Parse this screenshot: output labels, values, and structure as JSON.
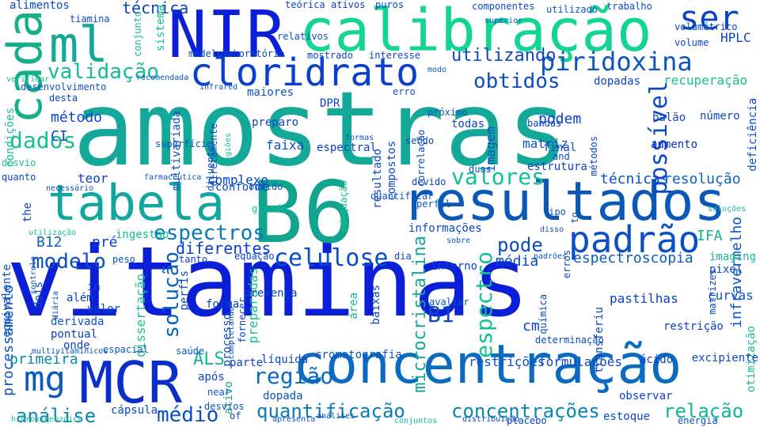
{
  "words": [
    {
      "text": "vitaminas",
      "color": "#0a1fd6"
    },
    {
      "text": "amostras",
      "color": "#13a898"
    },
    {
      "text": "B6",
      "color": "#11a48f"
    },
    {
      "text": "resultados",
      "color": "#0a59b7"
    },
    {
      "text": "concentração",
      "color": "#0a6bc1"
    },
    {
      "text": "calibração",
      "color": "#12d592"
    },
    {
      "text": "NIR",
      "color": "#0a1fd6"
    },
    {
      "text": "MCR",
      "color": "#0a2ec8"
    },
    {
      "text": "tabela",
      "color": "#11a6a0"
    },
    {
      "text": "cada",
      "color": "#15b08a"
    },
    {
      "text": "ml",
      "color": "#13a898"
    },
    {
      "text": "cloridrato",
      "color": "#0a3fcf"
    },
    {
      "text": "ser",
      "color": "#0a45bf"
    },
    {
      "text": "padrão",
      "color": "#0a4fc7"
    },
    {
      "text": "mg",
      "color": "#0a5ac0"
    },
    {
      "text": "piridoxina",
      "color": "#0a54c4"
    },
    {
      "text": "validação",
      "color": "#13bb98"
    },
    {
      "text": "utilizando",
      "color": "#0a47c9"
    },
    {
      "text": "obtidos",
      "color": "#0a4ec4"
    },
    {
      "text": "espectros",
      "color": "#0a78ba"
    },
    {
      "text": "dados",
      "color": "#17c18f"
    },
    {
      "text": "valores",
      "color": "#13c195"
    },
    {
      "text": "celulose",
      "color": "#0a4fc7"
    },
    {
      "text": "modelo",
      "color": "#0a51c4"
    },
    {
      "text": "região",
      "color": "#0a6bc1"
    },
    {
      "text": "quantificação",
      "color": "#0a7bb6"
    },
    {
      "text": "concentrações",
      "color": "#0a86b3"
    },
    {
      "text": "análise",
      "color": "#0a86b3"
    },
    {
      "text": "médio",
      "color": "#0a4fc7"
    },
    {
      "text": "relação",
      "color": "#13b39a"
    },
    {
      "text": "pode",
      "color": "#0a4ec4"
    },
    {
      "text": "solução",
      "color": "#0a63c1"
    },
    {
      "text": "espectro",
      "color": "#13c195"
    },
    {
      "text": "possível",
      "color": "#0a47c9"
    },
    {
      "text": "diferentes",
      "color": "#0a3fcf"
    },
    {
      "text": "espectroscopia",
      "color": "#0a5ac0"
    },
    {
      "text": "B1",
      "color": "#0a47c9"
    },
    {
      "text": "ALS",
      "color": "#13b39a"
    },
    {
      "text": "microcristalina",
      "color": "#13a898"
    },
    {
      "text": "método",
      "color": "#0a47c9"
    },
    {
      "text": "técnica",
      "color": "#0a45bf"
    },
    {
      "text": "CI",
      "color": "#0a47c9"
    },
    {
      "text": "B12",
      "color": "#0a63c1"
    },
    {
      "text": "pré",
      "color": "#0a3fcf"
    },
    {
      "text": "técnicas",
      "color": "#0a4fc7"
    },
    {
      "text": "resolução",
      "color": "#0a63c1"
    },
    {
      "text": "recuperação",
      "color": "#17c18f"
    },
    {
      "text": "infravermelho",
      "color": "#0a54c4"
    },
    {
      "text": "IFA",
      "color": "#15b08a"
    },
    {
      "text": "processamento",
      "color": "#0a54c4"
    },
    {
      "text": "primeira",
      "color": "#0a86b3"
    },
    {
      "text": "podem",
      "color": "#0a3fcf"
    },
    {
      "text": "matriz",
      "color": "#0a54c4"
    },
    {
      "text": "média",
      "color": "#0a47c9"
    },
    {
      "text": "imagem",
      "color": "#0a54c4"
    },
    {
      "text": "HPLC",
      "color": "#0a47c9"
    },
    {
      "text": "cm",
      "color": "#0a3fcf"
    },
    {
      "text": "dopadas",
      "color": "#0a47c9"
    },
    {
      "text": "preparadas",
      "color": "#17c18f"
    },
    {
      "text": "ingestão",
      "color": "#13bb98"
    },
    {
      "text": "complexo",
      "color": "#0a47c9"
    },
    {
      "text": "teor",
      "color": "#0a3fcf"
    },
    {
      "text": "estrutura",
      "color": "#0a3fcf"
    },
    {
      "text": "faixa",
      "color": "#0a54c4"
    },
    {
      "text": "espectral",
      "color": "#0a3fcf"
    },
    {
      "text": "todas",
      "color": "#0a47c9"
    },
    {
      "text": "próximo",
      "color": "#0a54c4"
    },
    {
      "text": "número",
      "color": "#0a47c9"
    },
    {
      "text": "balão",
      "color": "#0a47c9"
    },
    {
      "text": "aumento",
      "color": "#0a2ec8"
    },
    {
      "text": "pastilhas",
      "color": "#0a3fcf"
    },
    {
      "text": "curvas",
      "color": "#0a54c4"
    },
    {
      "text": "restrição",
      "color": "#0a3fcf"
    },
    {
      "text": "restrições",
      "color": "#0a54c4"
    },
    {
      "text": "formulações",
      "color": "#0a47c9"
    },
    {
      "text": "ácido",
      "color": "#0a3fcf"
    },
    {
      "text": "líquida",
      "color": "#0a47c9"
    },
    {
      "text": "cromatografia",
      "color": "#0a54c4"
    },
    {
      "text": "parte",
      "color": "#0a3fcf"
    },
    {
      "text": "após",
      "color": "#0a47c9"
    },
    {
      "text": "dopada",
      "color": "#0a54c4"
    },
    {
      "text": "ativo",
      "color": "#13a898"
    },
    {
      "text": "cápsula",
      "color": "#0a47c9"
    },
    {
      "text": "estoque",
      "color": "#0a47c9"
    },
    {
      "text": "observar",
      "color": "#0a3fcf"
    },
    {
      "text": "presença",
      "color": "#0a47c9"
    },
    {
      "text": "forma",
      "color": "#0a3fcf"
    },
    {
      "text": "processo",
      "color": "#0a47c9"
    },
    {
      "text": "dissertação",
      "color": "#17c18f"
    },
    {
      "text": "perfis",
      "color": "#0a47c9"
    },
    {
      "text": "onde",
      "color": "#0a47c9"
    },
    {
      "text": "pontual",
      "color": "#0a3fcf"
    },
    {
      "text": "derivada",
      "color": "#0a54c4"
    },
    {
      "text": "valor",
      "color": "#0a47c9"
    },
    {
      "text": "além",
      "color": "#0a3fcf"
    },
    {
      "text": "dois",
      "color": "#0a47c9"
    },
    {
      "text": "in",
      "color": "#0a3fcf"
    },
    {
      "text": "equação",
      "color": "#0a3fcf"
    },
    {
      "text": "peso",
      "color": "#0a54c4"
    },
    {
      "text": "tanto",
      "color": "#0a3fcf"
    },
    {
      "text": "interno",
      "color": "#0a3fcf"
    },
    {
      "text": "dia",
      "color": "#0a47c9"
    },
    {
      "text": "informações",
      "color": "#0a47c9"
    },
    {
      "text": "devido",
      "color": "#0a3fcf"
    },
    {
      "text": "grande",
      "color": "#13bb98"
    },
    {
      "text": "obtido",
      "color": "#0a54c4"
    },
    {
      "text": "conforme",
      "color": "#0a47c9"
    },
    {
      "text": "diluente",
      "color": "#0a54c4"
    },
    {
      "text": "multivariada",
      "color": "#0a54c4"
    },
    {
      "text": "superfície",
      "color": "#0a54c4"
    },
    {
      "text": "diretamente",
      "color": "#0a47c9"
    },
    {
      "text": "maiores",
      "color": "#0a54c4"
    },
    {
      "text": "DPR",
      "color": "#0a3fcf"
    },
    {
      "text": "preparo",
      "color": "#0a47c9"
    },
    {
      "text": "desta",
      "color": "#0a47c9"
    },
    {
      "text": "desenvolvimento",
      "color": "#0a54c4"
    },
    {
      "text": "modelos",
      "color": "#0a54c4"
    },
    {
      "text": "laboratório",
      "color": "#0a47c9"
    },
    {
      "text": "mostrado",
      "color": "#0a47c9"
    },
    {
      "text": "interesse",
      "color": "#0a3fcf"
    },
    {
      "text": "sistema",
      "color": "#13c195"
    },
    {
      "text": "utilizado",
      "color": "#0a54c4"
    },
    {
      "text": "trabalho",
      "color": "#0a47c9"
    },
    {
      "text": "componentes",
      "color": "#0a47c9"
    },
    {
      "text": "teórica",
      "color": "#0a47c9"
    },
    {
      "text": "ativos",
      "color": "#0a3fcf"
    },
    {
      "text": "puros",
      "color": "#0a47c9"
    },
    {
      "text": "tiamina",
      "color": "#0a47c9"
    },
    {
      "text": "alimentos",
      "color": "#0a47c9"
    },
    {
      "text": "conjunto",
      "color": "#13bb98"
    },
    {
      "text": "volumétrico",
      "color": "#0a47c9"
    },
    {
      "text": "volume",
      "color": "#0a47c9"
    },
    {
      "text": "resultado",
      "color": "#0a47c9"
    },
    {
      "text": "compostos",
      "color": "#0a47c9"
    },
    {
      "text": "correlação",
      "color": "#0a47c9"
    },
    {
      "text": "sendo",
      "color": "#0a47c9"
    },
    {
      "text": "bandas",
      "color": "#0a47c9"
    },
    {
      "text": "métodos",
      "color": "#0a47c9"
    },
    {
      "text": "final",
      "color": "#0a47c9"
    },
    {
      "text": "and",
      "color": "#0a47c9"
    },
    {
      "text": "deficiência",
      "color": "#0a47c9"
    },
    {
      "text": "equivalente",
      "color": "#0a54c4"
    },
    {
      "text": "the",
      "color": "#0a47c9"
    },
    {
      "text": "quanto",
      "color": "#0a47c9"
    },
    {
      "text": "desvio",
      "color": "#17c18f"
    },
    {
      "text": "condições",
      "color": "#13bb98"
    },
    {
      "text": "saúde",
      "color": "#0a54c4"
    },
    {
      "text": "near",
      "color": "#0a54c4"
    },
    {
      "text": "of",
      "color": "#0a3fcf"
    },
    {
      "text": "desvios",
      "color": "#0a54c4"
    },
    {
      "text": "apresenta",
      "color": "#0a54c4"
    },
    {
      "text": "análises",
      "color": "#0a47c9"
    },
    {
      "text": "conjuntos",
      "color": "#13bb98"
    },
    {
      "text": "distribuição",
      "color": "#0a47c9"
    },
    {
      "text": "placebo",
      "color": "#0a47c9"
    },
    {
      "text": "energia",
      "color": "#0a54c4"
    },
    {
      "text": "otimização",
      "color": "#13bb98"
    },
    {
      "text": "excipiente",
      "color": "#0a47c9"
    },
    {
      "text": "imaging",
      "color": "#13bb98"
    },
    {
      "text": "pixel",
      "color": "#0a47c9"
    },
    {
      "text": "matrizes",
      "color": "#0a47c9"
    },
    {
      "text": "soluções",
      "color": "#13bb98"
    },
    {
      "text": "transferiu",
      "color": "#0a47c9"
    },
    {
      "text": "química",
      "color": "#0a47c9"
    },
    {
      "text": "erros",
      "color": "#0a47c9"
    },
    {
      "text": "determinação",
      "color": "#0a47c9"
    },
    {
      "text": "avaliar",
      "color": "#0a54c4"
    },
    {
      "text": "baixas",
      "color": "#0a47c9"
    },
    {
      "text": "área",
      "color": "#13bb98"
    },
    {
      "text": "completando",
      "color": "#0a47c9"
    },
    {
      "text": "fornecer",
      "color": "#0a47c9"
    },
    {
      "text": "espacial",
      "color": "#0a54c4"
    },
    {
      "text": "multivitamínicos",
      "color": "#0a54c4"
    },
    {
      "text": "hidroxibenzóico",
      "color": "#13bb98"
    },
    {
      "text": "diária",
      "color": "#0a54c4"
    },
    {
      "text": "controle",
      "color": "#0a54c4"
    },
    {
      "text": "utilização",
      "color": "#13bb98"
    },
    {
      "text": "necessário",
      "color": "#0a54c4"
    },
    {
      "text": "farmacêutica",
      "color": "#0a54c4"
    },
    {
      "text": "adequação",
      "color": "#17c18f"
    },
    {
      "text": "quantificar",
      "color": "#0a54c4"
    },
    {
      "text": "perfil",
      "color": "#0a54c4"
    },
    {
      "text": "duas",
      "color": "#0a54c4"
    },
    {
      "text": "formas",
      "color": "#0a54c4"
    },
    {
      "text": "regiões",
      "color": "#13bb98"
    },
    {
      "text": "infrared",
      "color": "#0a54c4"
    },
    {
      "text": "recomendada",
      "color": "#0a54c4"
    },
    {
      "text": "verificar",
      "color": "#13bb98"
    },
    {
      "text": "relativos",
      "color": "#0a54c4"
    },
    {
      "text": "modo",
      "color": "#0a54c4"
    },
    {
      "text": "superior",
      "color": "#0a54c4"
    },
    {
      "text": "erro",
      "color": "#0a54c4"
    },
    {
      "text": "tipo",
      "color": "#0a54c4"
    },
    {
      "text": "to",
      "color": "#0a54c4"
    },
    {
      "text": "disso",
      "color": "#0a54c4"
    },
    {
      "text": "padrões",
      "color": "#0a54c4"
    },
    {
      "text": "sobre",
      "color": "#0a54c4"
    },
    {
      "text": "contendo",
      "color": "#0a54c4"
    }
  ]
}
